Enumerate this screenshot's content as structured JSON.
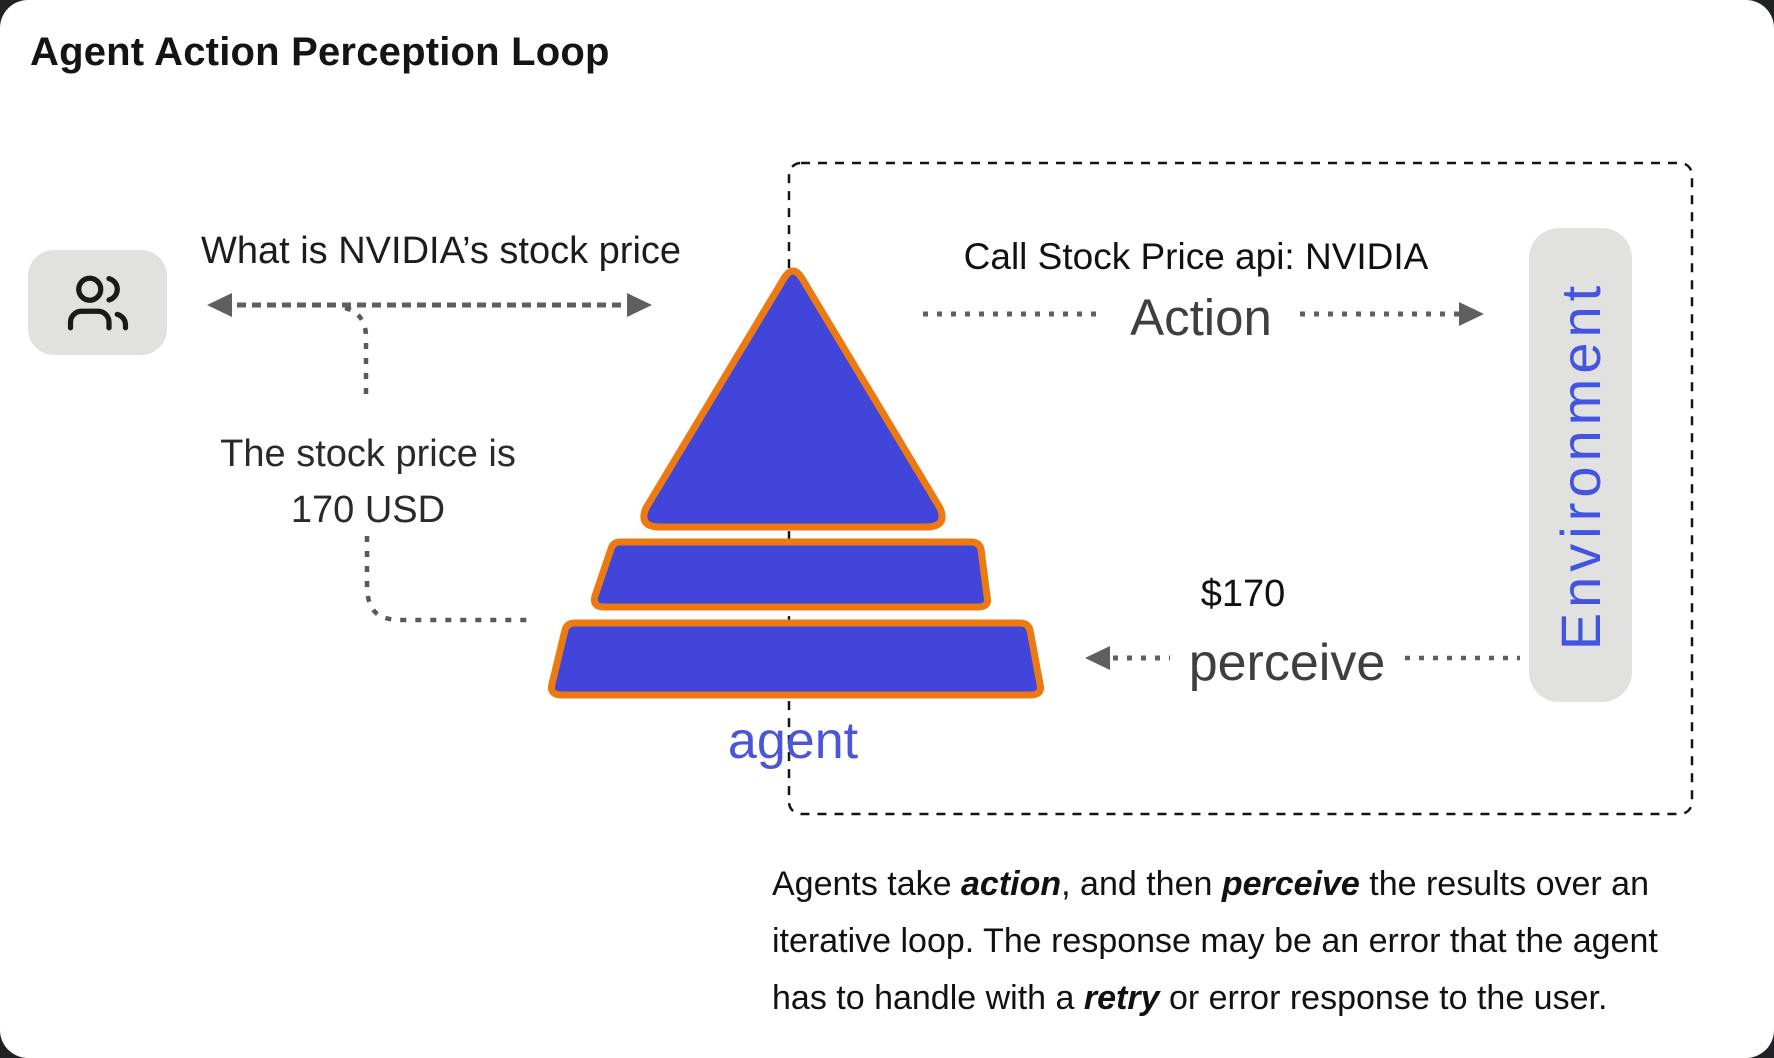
{
  "title": "Agent Action Perception Loop",
  "user": {
    "icon": "users-icon"
  },
  "messages": {
    "user_to_agent": "What is NVIDIA’s stock price",
    "agent_reply_line1": "The stock price is",
    "agent_reply_line2": "170 USD"
  },
  "loop_box": {
    "action_call": "Call Stock Price api: NVIDIA",
    "action_label": "Action",
    "perceive_amount": "$170",
    "perceive_label": "perceive",
    "environment_label": "Environment"
  },
  "agent_label": "agent",
  "caption": {
    "lines": [
      [
        {
          "t": "Agents take "
        },
        {
          "t": "action",
          "em": true
        },
        {
          "t": ", and then "
        },
        {
          "t": "perceive",
          "em": true
        },
        {
          "t": " the results over an"
        }
      ],
      [
        {
          "t": "iterative loop. The response may be an error that the agent"
        }
      ],
      [
        {
          "t": "has to handle with a "
        },
        {
          "t": "retry",
          "em": true
        },
        {
          "t": " or error response to the user."
        }
      ]
    ]
  },
  "colors": {
    "pyramid_fill": "#4145d9",
    "pyramid_stroke": "#ec7a10",
    "accent_blue": "#4254e0",
    "agent_blue": "#4b55d8",
    "box_gray": "#e1e1df",
    "arrow_gray": "#5f5f5f",
    "dashed_border": "#141414",
    "background": "#ffffff"
  }
}
